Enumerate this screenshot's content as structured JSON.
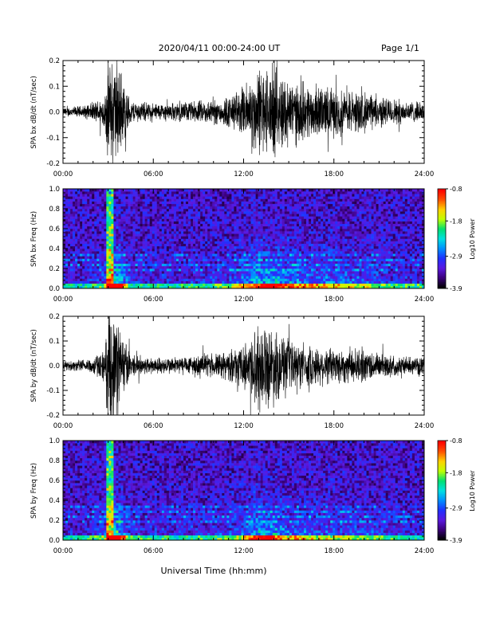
{
  "header": {
    "title": "2020/04/11  00:00-24:00 UT",
    "page": "Page 1/1"
  },
  "footer": {
    "xlabel": "Universal Time (hh:mm)"
  },
  "colors": {
    "trace": "#000000",
    "background": "#ffffff",
    "colormap": [
      "#000000",
      "#3a0078",
      "#5a18e0",
      "#2030ff",
      "#0090ff",
      "#00e0e0",
      "#00e070",
      "#c0ff00",
      "#ffd000",
      "#ff5000",
      "#ff0000"
    ]
  },
  "chart_data": [
    {
      "type": "line",
      "ylabel": "SPA bx dB/dt (nT/sec)",
      "xlim": [
        0,
        24
      ],
      "ylim": [
        -0.2,
        0.2
      ],
      "xtick_labels": [
        "00:00",
        "06:00",
        "12:00",
        "18:00",
        "24:00"
      ],
      "ytick_labels": [
        "0.2",
        "0.1",
        "0.0",
        "-0.1",
        "-0.2"
      ],
      "envelope": {
        "x_hours": [
          0,
          1.5,
          2.2,
          2.8,
          3.0,
          3.6,
          4.0,
          4.5,
          6.0,
          7.0,
          9.0,
          10.5,
          11.5,
          12.0,
          13.0,
          14.0,
          15.0,
          16.0,
          17.0,
          18.0,
          19.0,
          20.0,
          21.0,
          22.0,
          23.0,
          24.0
        ],
        "amplitude": [
          0.02,
          0.03,
          0.05,
          0.08,
          0.25,
          0.25,
          0.15,
          0.05,
          0.04,
          0.04,
          0.05,
          0.06,
          0.09,
          0.12,
          0.2,
          0.2,
          0.16,
          0.13,
          0.12,
          0.11,
          0.1,
          0.09,
          0.07,
          0.06,
          0.05,
          0.04
        ]
      }
    },
    {
      "type": "heatmap",
      "ylabel": "SPA bx Freq (Hz)",
      "xlim": [
        0,
        24
      ],
      "ylim": [
        0,
        1.0
      ],
      "xtick_labels": [
        "00:00",
        "06:00",
        "12:00",
        "18:00",
        "24:00"
      ],
      "ytick_labels": [
        "1.0",
        "0.8",
        "0.6",
        "0.4",
        "0.2",
        "0.0"
      ],
      "colorbar": {
        "label": "Log10 Power",
        "range": [
          -3.9,
          -0.8
        ],
        "tick_labels": [
          "-0.8",
          "-1.8",
          "-2.9",
          "-3.9"
        ]
      }
    },
    {
      "type": "line",
      "ylabel": "SPA by dB/dt (nT/sec)",
      "xlim": [
        0,
        24
      ],
      "ylim": [
        -0.2,
        0.2
      ],
      "xtick_labels": [
        "00:00",
        "06:00",
        "12:00",
        "18:00",
        "24:00"
      ],
      "ytick_labels": [
        "0.2",
        "0.1",
        "0.0",
        "-0.1",
        "-0.2"
      ],
      "envelope": {
        "x_hours": [
          0,
          1.5,
          2.2,
          2.8,
          3.0,
          3.6,
          4.0,
          4.5,
          6.0,
          7.0,
          9.0,
          10.5,
          11.5,
          12.0,
          13.0,
          14.0,
          15.0,
          16.0,
          17.0,
          18.0,
          19.0,
          20.0,
          21.0,
          22.0,
          23.0,
          24.0
        ],
        "amplitude": [
          0.02,
          0.03,
          0.05,
          0.08,
          0.25,
          0.25,
          0.15,
          0.05,
          0.04,
          0.04,
          0.05,
          0.06,
          0.08,
          0.1,
          0.2,
          0.18,
          0.12,
          0.1,
          0.09,
          0.09,
          0.08,
          0.08,
          0.06,
          0.05,
          0.04,
          0.04
        ]
      }
    },
    {
      "type": "heatmap",
      "ylabel": "SPA by Freq (Hz)",
      "xlim": [
        0,
        24
      ],
      "ylim": [
        0,
        1.0
      ],
      "xtick_labels": [
        "00:00",
        "06:00",
        "12:00",
        "18:00",
        "24:00"
      ],
      "ytick_labels": [
        "1.0",
        "0.8",
        "0.6",
        "0.4",
        "0.2",
        "0.0"
      ],
      "colorbar": {
        "label": "Log10 Power",
        "range": [
          -3.9,
          -0.8
        ],
        "tick_labels": [
          "-0.8",
          "-1.8",
          "-2.9",
          "-3.9"
        ]
      }
    }
  ]
}
